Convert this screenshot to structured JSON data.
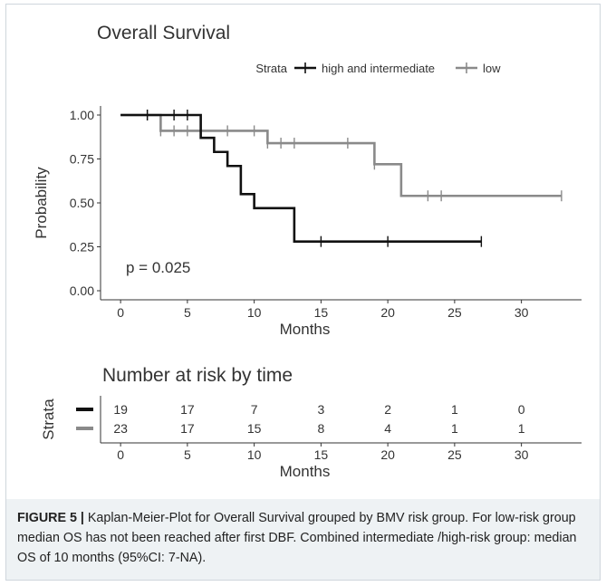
{
  "chart_data": [
    {
      "type": "line",
      "subtype": "kaplan-meier",
      "title": "Overall Survival",
      "legend_title": "Strata",
      "legend_position": "top",
      "xlabel": "Months",
      "ylabel": "Probability",
      "xlim": [
        -1.5,
        34.5
      ],
      "ylim": [
        0,
        1
      ],
      "xticks": [
        0,
        5,
        10,
        15,
        20,
        25,
        30
      ],
      "yticks": [
        "0.00",
        "0.25",
        "0.50",
        "0.75",
        "1.00"
      ],
      "grid": false,
      "annotation": "p = 0.025",
      "series": [
        {
          "name": "high and intermediate",
          "color": "#111111",
          "steps": [
            [
              0,
              1.0
            ],
            [
              6,
              0.87
            ],
            [
              7,
              0.79
            ],
            [
              8,
              0.71
            ],
            [
              9,
              0.55
            ],
            [
              10,
              0.47
            ],
            [
              13,
              0.28
            ],
            [
              27,
              0.28
            ]
          ],
          "censor_x": [
            2,
            4,
            5,
            15,
            20,
            27
          ]
        },
        {
          "name": "low",
          "color": "#8a8a8a",
          "steps": [
            [
              0,
              1.0
            ],
            [
              3,
              0.91
            ],
            [
              11,
              0.84
            ],
            [
              19,
              0.72
            ],
            [
              21,
              0.54
            ],
            [
              33,
              0.54
            ]
          ],
          "censor_x": [
            2,
            3,
            4,
            5,
            8,
            10,
            11,
            12,
            13,
            17,
            19,
            23,
            24,
            33
          ]
        }
      ]
    },
    {
      "type": "table",
      "title": "Number at risk by time",
      "ylabel": "Strata",
      "xlabel": "Months",
      "x": [
        0,
        5,
        10,
        15,
        20,
        25,
        30
      ],
      "rows": [
        {
          "color": "#111111",
          "values": [
            "19",
            "17",
            "7",
            "3",
            "2",
            "1",
            "0"
          ]
        },
        {
          "color": "#8a8a8a",
          "values": [
            "23",
            "17",
            "15",
            "8",
            "4",
            "1",
            "1"
          ]
        }
      ]
    }
  ],
  "caption": {
    "label": "FIGURE 5 |",
    "text": " Kaplan-Meier-Plot for Overall Survival grouped by BMV risk group. For low-risk group median OS has not been reached after first DBF. Combined intermediate /high-risk group: median OS of 10 months (95%CI: 7-NA)."
  }
}
